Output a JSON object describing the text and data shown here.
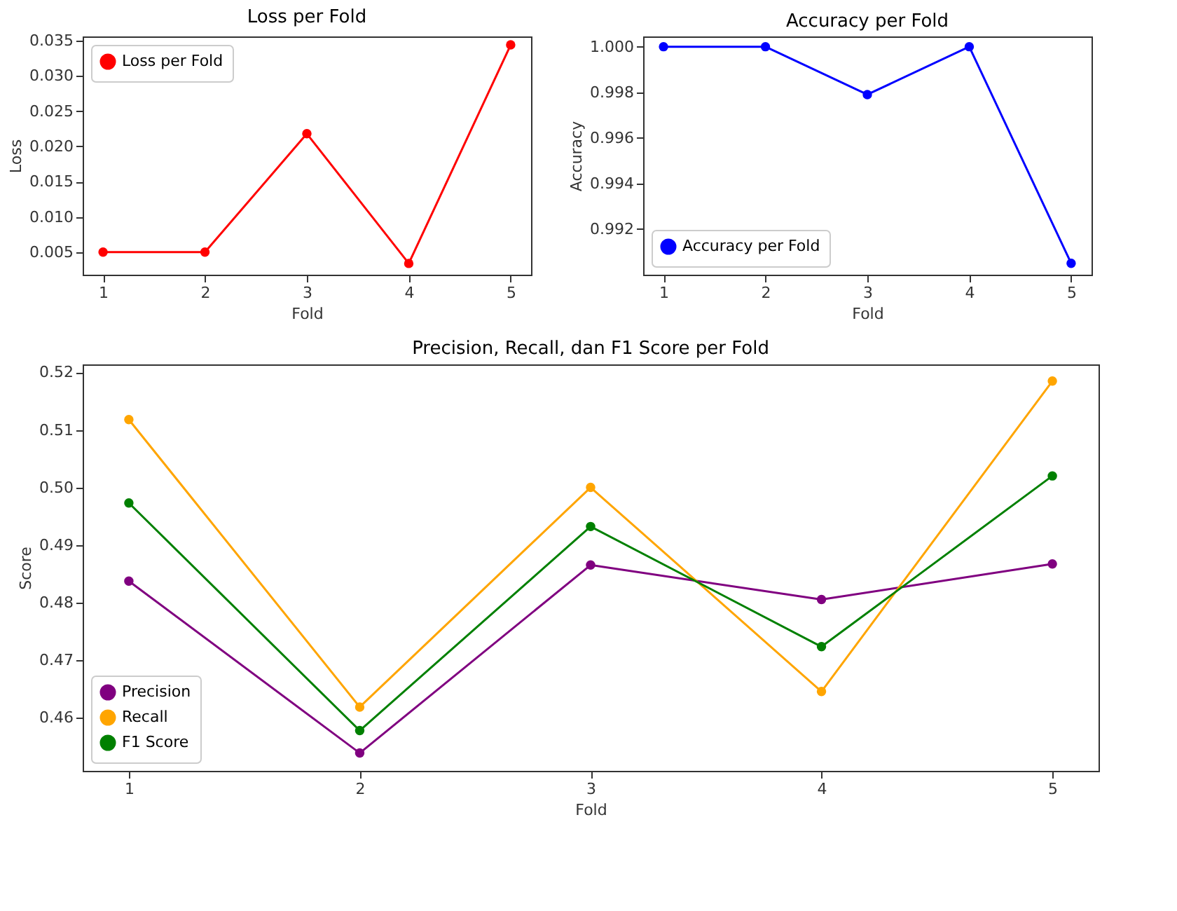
{
  "chart_data": [
    {
      "type": "line",
      "title": "Loss per Fold",
      "xlabel": "Fold",
      "ylabel": "Loss",
      "x": [
        1,
        2,
        3,
        4,
        5
      ],
      "xlim": [
        0.8,
        5.2
      ],
      "xticks": [
        1,
        2,
        3,
        4,
        5
      ],
      "ylim": [
        0.0018,
        0.0356
      ],
      "yticks": [
        {
          "value": 0.005,
          "label": "0.005"
        },
        {
          "value": 0.01,
          "label": "0.010"
        },
        {
          "value": 0.015,
          "label": "0.015"
        },
        {
          "value": 0.02,
          "label": "0.020"
        },
        {
          "value": 0.025,
          "label": "0.025"
        },
        {
          "value": 0.03,
          "label": "0.030"
        },
        {
          "value": 0.035,
          "label": "0.035"
        }
      ],
      "legend": "top left",
      "marker": "circle",
      "grid": false,
      "series": [
        {
          "name": "Loss per Fold",
          "color": "#ff0000",
          "values": [
            0.005,
            0.005,
            0.0218,
            0.0034,
            0.0344
          ]
        }
      ]
    },
    {
      "type": "line",
      "title": "Accuracy per Fold",
      "xlabel": "Fold",
      "ylabel": "Accuracy",
      "x": [
        1,
        2,
        3,
        4,
        5
      ],
      "xlim": [
        0.8,
        5.2
      ],
      "xticks": [
        1,
        2,
        3,
        4,
        5
      ],
      "ylim": [
        0.99,
        1.00045
      ],
      "yticks": [
        0.992,
        0.994,
        0.996,
        0.998,
        {
          "value": 1.0,
          "label": "1.000"
        }
      ],
      "legend": "bottom left",
      "marker": "circle",
      "grid": false,
      "series": [
        {
          "name": "Accuracy per Fold",
          "color": "#0000ff",
          "values": [
            1.0,
            1.0,
            0.9979,
            1.0,
            0.9905
          ]
        }
      ]
    },
    {
      "type": "line",
      "title": "Precision, Recall, dan F1 Score per Fold",
      "xlabel": "Fold",
      "ylabel": "Score",
      "x": [
        1,
        2,
        3,
        4,
        5
      ],
      "xlim": [
        0.8,
        5.2
      ],
      "xticks": [
        1,
        2,
        3,
        4,
        5
      ],
      "ylim": [
        0.4507,
        0.5214
      ],
      "yticks": [
        0.46,
        0.47,
        0.48,
        0.49,
        {
          "value": 0.5,
          "label": "0.50"
        },
        0.51,
        0.52
      ],
      "legend": "bottom left",
      "marker": "circle",
      "grid": false,
      "series": [
        {
          "name": "Precision",
          "color": "#800080",
          "values": [
            0.4837,
            0.4538,
            0.4865,
            0.4805,
            0.4867
          ]
        },
        {
          "name": "Recall",
          "color": "#ffa500",
          "values": [
            0.5118,
            0.4618,
            0.5,
            0.4645,
            0.5185
          ]
        },
        {
          "name": "F1 Score",
          "color": "#008000",
          "values": [
            0.4973,
            0.4577,
            0.4932,
            0.4723,
            0.502
          ]
        }
      ]
    }
  ]
}
